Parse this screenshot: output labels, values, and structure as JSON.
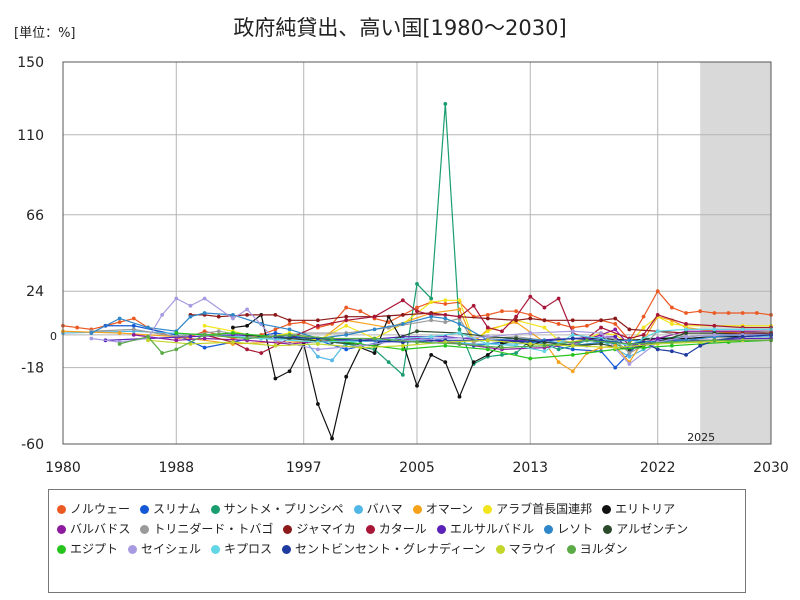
{
  "unit_label": "[単位：%]",
  "colors": {
    "forecast_band": "#d9d9d9",
    "grid": "#b5b5b5"
  },
  "chart_data": {
    "type": "line",
    "title": "政府純貸出、高い国[1980～2030]",
    "xlabel": "",
    "ylabel": "",
    "xlim": [
      1980,
      2030
    ],
    "ylim": [
      -60,
      150
    ],
    "x_ticks": [
      1980,
      1988,
      1997,
      2005,
      2013,
      2022,
      2030
    ],
    "y_ticks": [
      150,
      110,
      66,
      24,
      0,
      -18,
      -60
    ],
    "forecast_start": 2025,
    "forecast_label": "2025",
    "grid": true,
    "legend_position": "bottom",
    "series": [
      {
        "name": "ノルウェー",
        "color": "#ec5a24",
        "x": [
          1980,
          1981,
          1982,
          1983,
          1984,
          1985,
          1986,
          1987,
          1988,
          1989,
          1990,
          1991,
          1992,
          1993,
          1994,
          1995,
          1996,
          1997,
          1998,
          1999,
          2000,
          2001,
          2002,
          2003,
          2004,
          2005,
          2006,
          2007,
          2008,
          2009,
          2010,
          2011,
          2012,
          2013,
          2014,
          2015,
          2016,
          2017,
          2018,
          2019,
          2020,
          2021,
          2022,
          2023,
          2024,
          2025,
          2026,
          2027,
          2028,
          2029,
          2030
        ],
        "y": [
          5,
          4,
          3,
          5,
          7,
          9,
          4,
          1,
          -2,
          -1,
          2,
          0,
          -2,
          -1,
          0,
          3,
          6,
          7,
          4,
          6,
          15,
          13,
          9,
          7,
          11,
          15,
          18,
          17,
          18,
          10,
          11,
          13,
          13,
          11,
          8,
          6,
          4,
          5,
          8,
          6,
          -3,
          10,
          24,
          15,
          12,
          13,
          12,
          12,
          12,
          12,
          11
        ]
      },
      {
        "name": "スリナム",
        "color": "#1458d6",
        "x": [
          1983,
          1985,
          1988,
          1990,
          1992,
          1995,
          1998,
          2000,
          2003,
          2006,
          2009,
          2012,
          2014,
          2016,
          2018,
          2019,
          2020,
          2021,
          2022,
          2024,
          2026,
          2028,
          2030
        ],
        "y": [
          5,
          5,
          0,
          -7,
          -4,
          1,
          -3,
          -8,
          -3,
          -2,
          -6,
          -3,
          -5,
          -8,
          -9,
          -18,
          -10,
          -2,
          -2,
          -3,
          -1,
          0,
          1
        ]
      },
      {
        "name": "サントメ・プリンシペ",
        "color": "#1a9e6f",
        "x": [
          1996,
          1998,
          2000,
          2002,
          2003,
          2004,
          2005,
          2006,
          2007,
          2008,
          2009,
          2010,
          2011,
          2012,
          2013,
          2014,
          2015,
          2016,
          2017,
          2018,
          2019,
          2020,
          2021,
          2022,
          2024,
          2026,
          2028,
          2030
        ],
        "y": [
          -1,
          -3,
          -5,
          -8,
          -15,
          -22,
          28,
          20,
          127,
          3,
          -16,
          -12,
          -11,
          -10,
          -3,
          -5,
          -8,
          -6,
          -3,
          -4,
          -5,
          -8,
          -2,
          -2,
          -1,
          0,
          1,
          2
        ]
      },
      {
        "name": "バハマ",
        "color": "#52b6e6",
        "x": [
          1980,
          1985,
          1990,
          1995,
          1997,
          1998,
          1999,
          2000,
          2003,
          2006,
          2009,
          2012,
          2015,
          2016,
          2018,
          2020,
          2021,
          2022,
          2024,
          2026,
          2028,
          2030
        ],
        "y": [
          1,
          2,
          0,
          -2,
          -2,
          -12,
          -14,
          -4,
          -3,
          -3,
          -5,
          -5,
          -4,
          -4,
          -3,
          -12,
          -8,
          -4,
          -2,
          -1,
          -1,
          -1
        ]
      },
      {
        "name": "オマーン",
        "color": "#f5a11a",
        "x": [
          1980,
          1984,
          1988,
          1992,
          1995,
          1998,
          2000,
          2003,
          2006,
          2008,
          2009,
          2010,
          2012,
          2014,
          2015,
          2016,
          2017,
          2018,
          2019,
          2020,
          2021,
          2022,
          2023,
          2024,
          2026,
          2028,
          2030
        ],
        "y": [
          2,
          1,
          -1,
          -5,
          -4,
          -4,
          8,
          4,
          12,
          14,
          -4,
          3,
          7,
          -4,
          -15,
          -20,
          -10,
          -7,
          -6,
          -15,
          -3,
          10,
          8,
          4,
          2,
          1,
          1
        ]
      },
      {
        "name": "アラブ首長国連邦",
        "color": "#f2e51c",
        "x": [
          1990,
          1992,
          1994,
          1996,
          1998,
          2000,
          2002,
          2004,
          2006,
          2007,
          2008,
          2009,
          2010,
          2012,
          2014,
          2015,
          2016,
          2017,
          2018,
          2019,
          2020,
          2021,
          2022,
          2023,
          2024,
          2026,
          2028,
          2030
        ],
        "y": [
          5,
          2,
          -2,
          1,
          -3,
          5,
          -2,
          6,
          18,
          19,
          19,
          -3,
          2,
          8,
          4,
          -3,
          -4,
          -2,
          1,
          0,
          -5,
          4,
          10,
          6,
          5,
          5,
          5,
          5
        ]
      },
      {
        "name": "エリトリア",
        "color": "#111111",
        "x": [
          1992,
          1993,
          1994,
          1995,
          1996,
          1997,
          1998,
          1999,
          2000,
          2001,
          2002,
          2003,
          2004,
          2005,
          2006,
          2007,
          2008,
          2009,
          2010,
          2011,
          2012,
          2013,
          2014,
          2016,
          2018,
          2020,
          2022,
          2024,
          2026,
          2028,
          2030
        ],
        "y": [
          4,
          5,
          11,
          -24,
          -20,
          -5,
          -38,
          -57,
          -23,
          -7,
          -10,
          10,
          -4,
          -28,
          -11,
          -15,
          -34,
          -15,
          -11,
          -5,
          -3,
          -6,
          -3,
          -2,
          -2,
          -3,
          -2,
          -2,
          -1,
          -1,
          0
        ]
      },
      {
        "name": "バルバドス",
        "color": "#8e1aa0",
        "x": [
          1985,
          1988,
          1990,
          1993,
          1996,
          1999,
          2002,
          2005,
          2008,
          2011,
          2014,
          2016,
          2018,
          2019,
          2020,
          2021,
          2022,
          2024,
          2026,
          2028,
          2030
        ],
        "y": [
          0,
          -3,
          -2,
          -3,
          -5,
          -3,
          -3,
          -2,
          -5,
          -8,
          -7,
          -5,
          0,
          3,
          -6,
          -4,
          -2,
          2,
          2,
          2,
          2
        ]
      },
      {
        "name": "トリニダード・トバゴ",
        "color": "#9a9a9a",
        "x": [
          1982,
          1985,
          1988,
          1991,
          1994,
          1997,
          2000,
          2003,
          2006,
          2007,
          2008,
          2009,
          2010,
          2012,
          2014,
          2015,
          2016,
          2017,
          2018,
          2019,
          2020,
          2021,
          2022,
          2024,
          2026,
          2028,
          2030
        ],
        "y": [
          2,
          3,
          -1,
          2,
          -2,
          1,
          1,
          4,
          8,
          7,
          9,
          -4,
          -2,
          -1,
          -3,
          -2,
          -5,
          -6,
          -4,
          -3,
          -10,
          -6,
          2,
          -1,
          0,
          1,
          2
        ]
      },
      {
        "name": "ジャマイカ",
        "color": "#8c1a1a",
        "x": [
          1989,
          1990,
          1991,
          1993,
          1995,
          1996,
          1998,
          2000,
          2002,
          2004,
          2006,
          2008,
          2010,
          2012,
          2013,
          2014,
          2016,
          2018,
          2019,
          2020,
          2022,
          2024,
          2026,
          2028,
          2030
        ],
        "y": [
          11,
          11,
          10,
          11,
          11,
          8,
          8,
          10,
          10,
          11,
          12,
          10,
          9,
          8,
          9,
          8,
          8,
          8,
          9,
          3,
          2,
          1,
          1,
          1,
          1
        ]
      },
      {
        "name": "カタール",
        "color": "#a81638",
        "x": [
          1990,
          1992,
          1993,
          1994,
          1996,
          1998,
          2000,
          2002,
          2004,
          2005,
          2006,
          2007,
          2008,
          2009,
          2010,
          2011,
          2012,
          2013,
          2014,
          2015,
          2016,
          2017,
          2018,
          2020,
          2021,
          2022,
          2024,
          2026,
          2028,
          2030
        ],
        "y": [
          0,
          -4,
          -8,
          -10,
          -2,
          5,
          8,
          10,
          19,
          13,
          11,
          11,
          10,
          16,
          4,
          2,
          10,
          21,
          15,
          20,
          1,
          -2,
          4,
          -2,
          0,
          11,
          6,
          5,
          4,
          4
        ]
      },
      {
        "name": "エルサルバドル",
        "color": "#5a22b8",
        "x": [
          1983,
          1986,
          1989,
          1992,
          1995,
          1998,
          2001,
          2004,
          2007,
          2010,
          2013,
          2016,
          2019,
          2020,
          2021,
          2022,
          2024,
          2026,
          2028,
          2030
        ],
        "y": [
          -3,
          -2,
          -1,
          0,
          -1,
          -2,
          -3,
          -1,
          -1,
          -3,
          -3,
          -2,
          -1,
          -8,
          -5,
          -3,
          -3,
          -3,
          -2,
          -2
        ]
      },
      {
        "name": "レソト",
        "color": "#2f86c8",
        "x": [
          1982,
          1984,
          1986,
          1988,
          1989,
          1990,
          1992,
          1994,
          1996,
          1998,
          2000,
          2002,
          2004,
          2006,
          2007,
          2008,
          2010,
          2012,
          2014,
          2016,
          2018,
          2020,
          2022,
          2024,
          2026,
          2028,
          2030
        ],
        "y": [
          1,
          9,
          4,
          2,
          10,
          12,
          11,
          6,
          3,
          -2,
          0,
          3,
          6,
          10,
          9,
          6,
          -3,
          -2,
          -3,
          -6,
          -4,
          -3,
          -4,
          -3,
          -1,
          0,
          0
        ]
      },
      {
        "name": "アルゼンチン",
        "color": "#2b4a2b",
        "x": [
          1993,
          1996,
          1999,
          2002,
          2005,
          2008,
          2010,
          2012,
          2014,
          2016,
          2018,
          2020,
          2022,
          2024,
          2026,
          2028,
          2030
        ],
        "y": [
          0,
          -2,
          -4,
          -6,
          2,
          1,
          -1,
          -2,
          -4,
          -6,
          -5,
          -8,
          -4,
          1,
          1,
          0,
          0
        ]
      },
      {
        "name": "エジプト",
        "color": "#28c41e",
        "x": [
          1988,
          1990,
          1992,
          1995,
          1998,
          2001,
          2004,
          2007,
          2010,
          2013,
          2016,
          2019,
          2021,
          2023,
          2025,
          2027,
          2030
        ],
        "y": [
          1,
          0,
          1,
          -1,
          -2,
          -5,
          -8,
          -6,
          -8,
          -13,
          -11,
          -8,
          -7,
          -6,
          -5,
          -4,
          -3
        ]
      },
      {
        "name": "セイシェル",
        "color": "#a89ae0",
        "x": [
          1982,
          1984,
          1986,
          1987,
          1988,
          1989,
          1990,
          1992,
          1993,
          1995,
          1998,
          2001,
          2004,
          2007,
          2010,
          2013,
          2016,
          2018,
          2020,
          2022,
          2024,
          2026,
          2028,
          2030
        ],
        "y": [
          -2,
          -4,
          -2,
          11,
          20,
          16,
          20,
          9,
          14,
          -3,
          -8,
          -6,
          -3,
          -2,
          -1,
          1,
          2,
          1,
          -16,
          -4,
          -1,
          0,
          0,
          0
        ]
      },
      {
        "name": "キプロス",
        "color": "#62d6e4",
        "x": [
          1990,
          1994,
          1998,
          2002,
          2006,
          2008,
          2010,
          2012,
          2014,
          2016,
          2018,
          2020,
          2022,
          2024,
          2026,
          2028,
          2030
        ],
        "y": [
          0,
          -2,
          -4,
          -3,
          -1,
          1,
          -5,
          -6,
          -9,
          0,
          -2,
          -6,
          2,
          3,
          3,
          3,
          3
        ]
      },
      {
        "name": "セントビンセント・グレナディーン",
        "color": "#1f3aa0",
        "x": [
          1995,
          1998,
          2001,
          2004,
          2007,
          2010,
          2013,
          2016,
          2018,
          2020,
          2021,
          2022,
          2023,
          2024,
          2025,
          2026,
          2028,
          2030
        ],
        "y": [
          -1,
          -2,
          -3,
          -4,
          -3,
          -3,
          -4,
          -2,
          -3,
          -5,
          -4,
          -8,
          -9,
          -11,
          -6,
          -3,
          -1,
          0
        ]
      },
      {
        "name": "マラウイ",
        "color": "#c4d62a",
        "x": [
          1986,
          1989,
          1992,
          1995,
          1998,
          2001,
          2004,
          2007,
          2010,
          2013,
          2016,
          2019,
          2022,
          2025,
          2028,
          2030
        ],
        "y": [
          -3,
          -5,
          -4,
          -6,
          -5,
          -7,
          -6,
          -4,
          -3,
          -5,
          -6,
          -7,
          -5,
          -4,
          -3,
          -3
        ]
      },
      {
        "name": "ヨルダン",
        "color": "#5aaa46",
        "x": [
          1984,
          1986,
          1987,
          1988,
          1990,
          1993,
          1996,
          1999,
          2002,
          2005,
          2008,
          2011,
          2014,
          2017,
          2020,
          2023,
          2026,
          2030
        ],
        "y": [
          -5,
          -1,
          -10,
          -8,
          0,
          -2,
          0,
          -2,
          -2,
          -4,
          -5,
          -7,
          -6,
          -3,
          -5,
          -4,
          -3,
          -3
        ]
      }
    ]
  }
}
